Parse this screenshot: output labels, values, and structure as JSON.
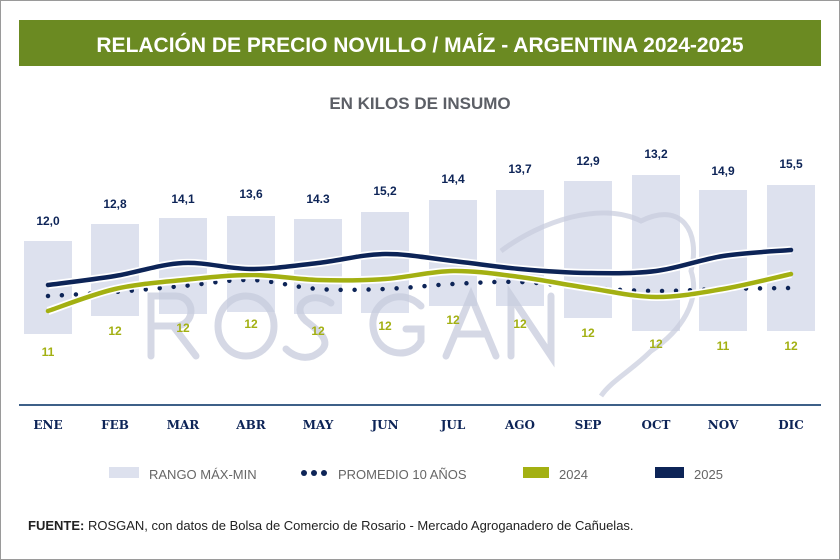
{
  "header": {
    "title": "RELACIÓN DE PRECIO NOVILLO / MAÍZ - ARGENTINA 2024-2025",
    "band_color": "#6b8a22"
  },
  "watermark": {
    "text": "ROSGAN"
  },
  "chart_data": {
    "type": "line",
    "title": "RELACIÓN DE PRECIO NOVILLO / MAÍZ - ARGENTINA 2024-2025",
    "subtitle": "EN KILOS DE INSUMO",
    "categories": [
      "ENE",
      "FEB",
      "MAR",
      "ABR",
      "MAY",
      "JUN",
      "JUL",
      "AGO",
      "SEP",
      "OCT",
      "NOV",
      "DIC"
    ],
    "series": [
      {
        "name": "2025",
        "color": "#0d2457",
        "style": "solid",
        "labels": [
          "12,0",
          "12,8",
          "14,1",
          "13,6",
          "14.3",
          "15,2",
          "14,4",
          "13,7",
          "12,9",
          "13,2",
          "14,9",
          "15,5"
        ],
        "values": [
          12.0,
          12.8,
          14.1,
          13.6,
          14.3,
          15.2,
          14.4,
          13.7,
          12.9,
          13.2,
          14.9,
          15.5
        ]
      },
      {
        "name": "2024",
        "color": "#a3b012",
        "style": "solid",
        "labels": [
          "11",
          "12",
          "12",
          "12",
          "12",
          "12",
          "12",
          "12",
          "12",
          "12",
          "11",
          "12"
        ],
        "values": [
          11,
          12,
          12,
          12,
          12,
          12,
          12,
          12,
          12,
          12,
          11,
          12
        ]
      },
      {
        "name": "PROMEDIO 10 AÑOS",
        "color": "#0d2457",
        "style": "dotted"
      },
      {
        "name": "RANGO MÁX-MIN",
        "color": "#dde1ee",
        "style": "range-bar"
      }
    ],
    "xlabel": "",
    "ylabel": "",
    "grid": false,
    "legend_position": "bottom"
  },
  "footer": {
    "source_label": "FUENTE:",
    "source_text": " ROSGAN, con datos de Bolsa de Comercio de Rosario - Mercado Agroganadero de Cañuelas."
  }
}
